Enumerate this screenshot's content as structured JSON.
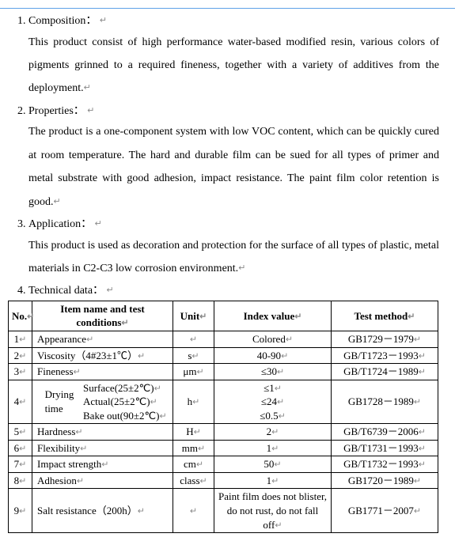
{
  "return_mark": "↵",
  "sections": [
    {
      "heading": "Composition：",
      "body": "This product consist of high performance water-based modified resin, various colors of pigments grinned to a required fineness, together with a variety of additives from the deployment."
    },
    {
      "heading": "Properties：",
      "body": "The product is a one-component system with low VOC content, which can be quickly cured at room temperature. The hard and durable film can be sued for all types of primer and metal substrate with good adhesion, impact resistance. The paint film color retention is good."
    },
    {
      "heading": "Application：",
      "body": "This product is used as decoration and protection for the surface of all types of plastic, metal materials in C2-C3 low corrosion environment."
    },
    {
      "heading": "Technical data：",
      "body": null
    }
  ],
  "table": {
    "headers": {
      "no": "No.",
      "item": "Item name and test conditions",
      "unit": "Unit",
      "index": "Index value",
      "method": "Test method"
    },
    "rows": [
      {
        "no": "1",
        "item": "Appearance",
        "unit": "",
        "index": "Colored",
        "method": "GB1729－1979"
      },
      {
        "no": "2",
        "item": "Viscosity（4#23±1℃）",
        "unit": "s",
        "index": "40-90",
        "method": "GB/T1723－1993"
      },
      {
        "no": "3",
        "item": "Fineness",
        "unit": "μm",
        "index": "≤30",
        "method": "GB/T1724－1989"
      },
      {
        "no": "4",
        "drying": {
          "label": "Drying time",
          "lines": [
            "Surface(25±2℃)",
            "Actual(25±2℃)",
            "Bake out(90±2℃)"
          ]
        },
        "unit": "h",
        "index_lines": [
          "≤1",
          "≤24",
          "≤0.5"
        ],
        "method": "GB1728－1989"
      },
      {
        "no": "5",
        "item": "Hardness",
        "unit": "H",
        "index": "2",
        "method": "GB/T6739－2006"
      },
      {
        "no": "6",
        "item": "Flexibility",
        "unit": "mm",
        "index": "1",
        "method": "GB/T1731－1993"
      },
      {
        "no": "7",
        "item": "Impact strength",
        "unit": "cm",
        "index": "50",
        "method": "GB/T1732－1993"
      },
      {
        "no": "8",
        "item": "Adhesion",
        "unit": "class",
        "index": "1",
        "method": "GB1720－1989"
      },
      {
        "no": "9",
        "item": "Salt resistance（200h）",
        "unit": "",
        "index": "Paint film does not blister, do not rust, do not fall off",
        "method": "GB1771－2007"
      }
    ]
  }
}
